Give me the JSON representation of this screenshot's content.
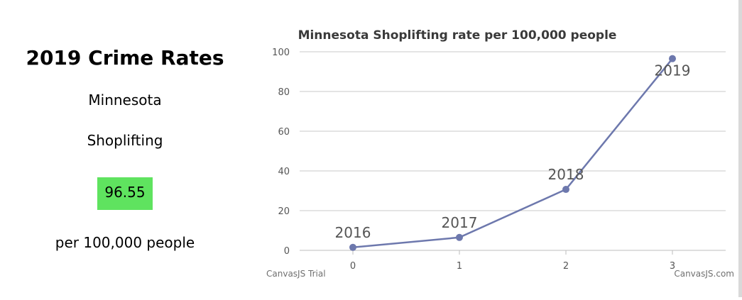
{
  "panel": {
    "title": "2019 Crime Rates",
    "state": "Minnesota",
    "crime": "Shoplifting",
    "rate": "96.55",
    "unit": "per 100,000 people",
    "badge_color": "#5fe35f"
  },
  "watermarks": {
    "trial": "CanvasJS Trial",
    "brand": "CanvasJS.com"
  },
  "chart_data": {
    "type": "line",
    "title": "Minnesota Shoplifting rate per 100,000 people",
    "x": [
      0,
      1,
      2,
      3
    ],
    "x_tick_labels": [
      "0",
      "1",
      "2",
      "3"
    ],
    "series": [
      {
        "values": [
          1.5,
          6.5,
          30.7,
          96.55
        ],
        "point_labels": [
          "2016",
          "2017",
          "2018",
          "2019"
        ],
        "color": "#6d78ad"
      }
    ],
    "ylim": [
      0,
      100
    ],
    "y_ticks": [
      0,
      20,
      40,
      60,
      80,
      100
    ],
    "y_tick_labels": [
      "0",
      "20",
      "40",
      "60",
      "80",
      "100"
    ],
    "xlim": [
      -0.5,
      3.5
    ],
    "grid": "horizontal",
    "xlabel": "",
    "ylabel": ""
  }
}
